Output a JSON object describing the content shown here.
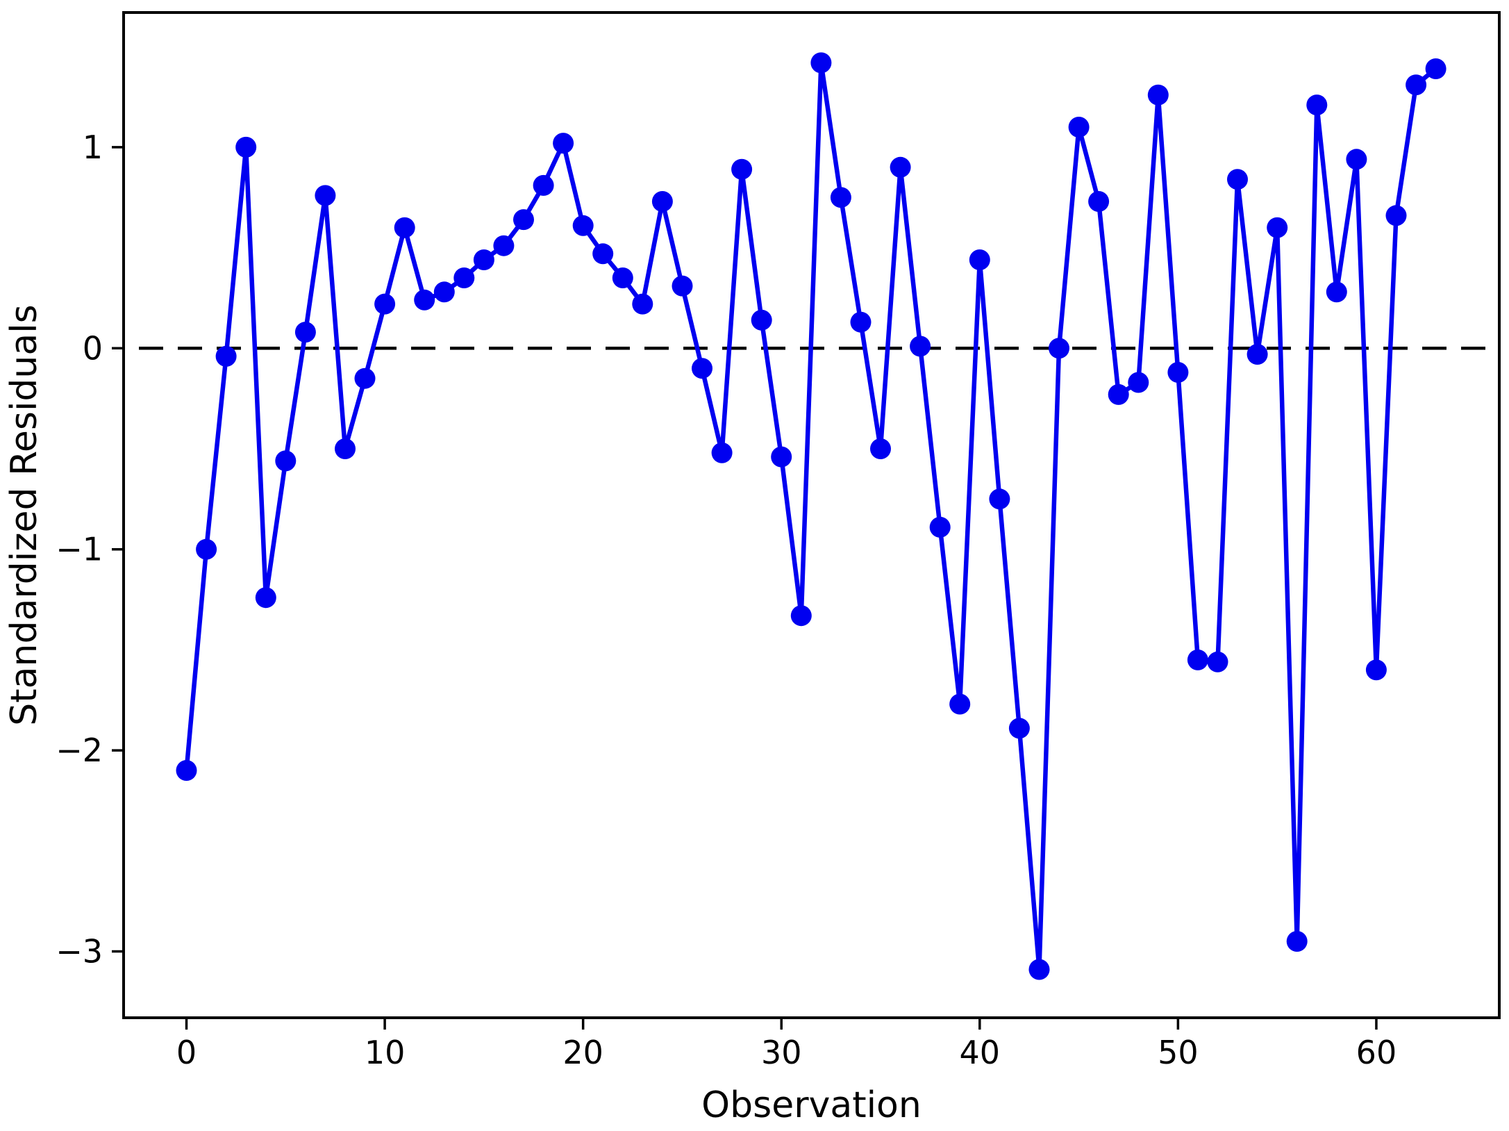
{
  "chart_data": {
    "type": "line",
    "title": "",
    "xlabel": "Observation",
    "ylabel": "Standardized Residuals",
    "x": [
      0,
      1,
      2,
      3,
      4,
      5,
      6,
      7,
      8,
      9,
      10,
      11,
      12,
      13,
      14,
      15,
      16,
      17,
      18,
      19,
      20,
      21,
      22,
      23,
      24,
      25,
      26,
      27,
      28,
      29,
      30,
      31,
      32,
      33,
      34,
      35,
      36,
      37,
      38,
      39,
      40,
      41,
      42,
      43,
      44,
      45,
      46,
      47,
      48,
      49,
      50,
      51,
      52,
      53,
      54,
      55,
      56,
      57,
      58,
      59,
      60,
      61,
      62,
      63
    ],
    "values": [
      -2.1,
      -1.0,
      -0.04,
      1.0,
      -1.24,
      -0.56,
      0.08,
      0.76,
      -0.5,
      -0.15,
      0.22,
      0.6,
      0.24,
      0.28,
      0.35,
      0.44,
      0.51,
      0.64,
      0.81,
      1.02,
      0.61,
      0.47,
      0.35,
      0.22,
      0.73,
      0.31,
      -0.1,
      -0.52,
      0.89,
      0.14,
      -0.54,
      -1.33,
      1.42,
      0.75,
      0.13,
      -0.5,
      0.9,
      0.01,
      -0.89,
      -1.77,
      0.44,
      -0.75,
      -1.89,
      -3.09,
      0.0,
      1.1,
      0.73,
      -0.23,
      -0.17,
      1.26,
      -0.12,
      -1.55,
      -1.56,
      0.84,
      -0.03,
      0.6,
      -2.95,
      1.21,
      0.28,
      0.94,
      -1.6,
      0.66,
      1.31,
      1.39
    ],
    "xticks": [
      0,
      10,
      20,
      30,
      40,
      50,
      60
    ],
    "yticks": [
      1,
      0,
      -1,
      -2,
      -3
    ],
    "xlim": [
      -3.17,
      66.2
    ],
    "ylim": [
      -3.33,
      1.67
    ],
    "grid": false,
    "legend": null,
    "zero_line": {
      "y": 0,
      "style": "dashed",
      "color": "#000000"
    },
    "colors": {
      "series": "#0000f0",
      "axis": "#000000",
      "background": "#ffffff"
    },
    "marker": "circle"
  }
}
